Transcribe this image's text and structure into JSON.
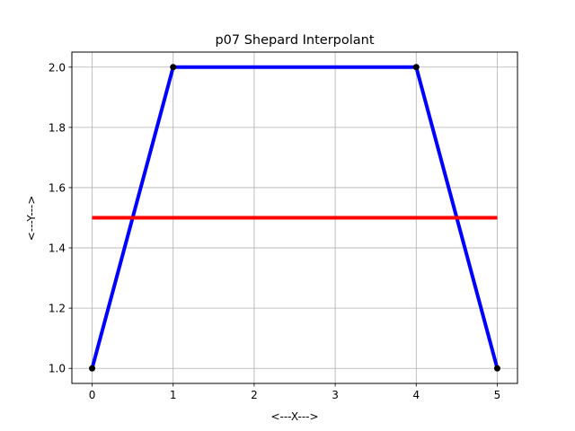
{
  "chart_data": {
    "type": "line",
    "title": "p07 Shepard Interpolant",
    "xlabel": "<---X--->",
    "ylabel": "<---Y--->",
    "xlim": [
      -0.25,
      5.25
    ],
    "ylim": [
      0.95,
      2.05
    ],
    "xticks": [
      0,
      1,
      2,
      3,
      4,
      5
    ],
    "xtick_labels": [
      "0",
      "1",
      "2",
      "3",
      "4",
      "5"
    ],
    "yticks": [
      1.0,
      1.2,
      1.4,
      1.6,
      1.8,
      2.0
    ],
    "ytick_labels": [
      "1.0",
      "1.2",
      "1.4",
      "1.6",
      "1.8",
      "2.0"
    ],
    "grid": true,
    "series": [
      {
        "x": [
          0,
          1,
          4,
          5
        ],
        "y": [
          1,
          2,
          2,
          1
        ],
        "color": "#0000ff",
        "style": "line"
      },
      {
        "x": [
          0,
          5
        ],
        "y": [
          1.5,
          1.5
        ],
        "color": "#ff0000",
        "style": "line"
      },
      {
        "x": [
          0,
          1,
          4,
          5
        ],
        "y": [
          1,
          2,
          2,
          1
        ],
        "color": "#000000",
        "style": "markers"
      }
    ]
  }
}
